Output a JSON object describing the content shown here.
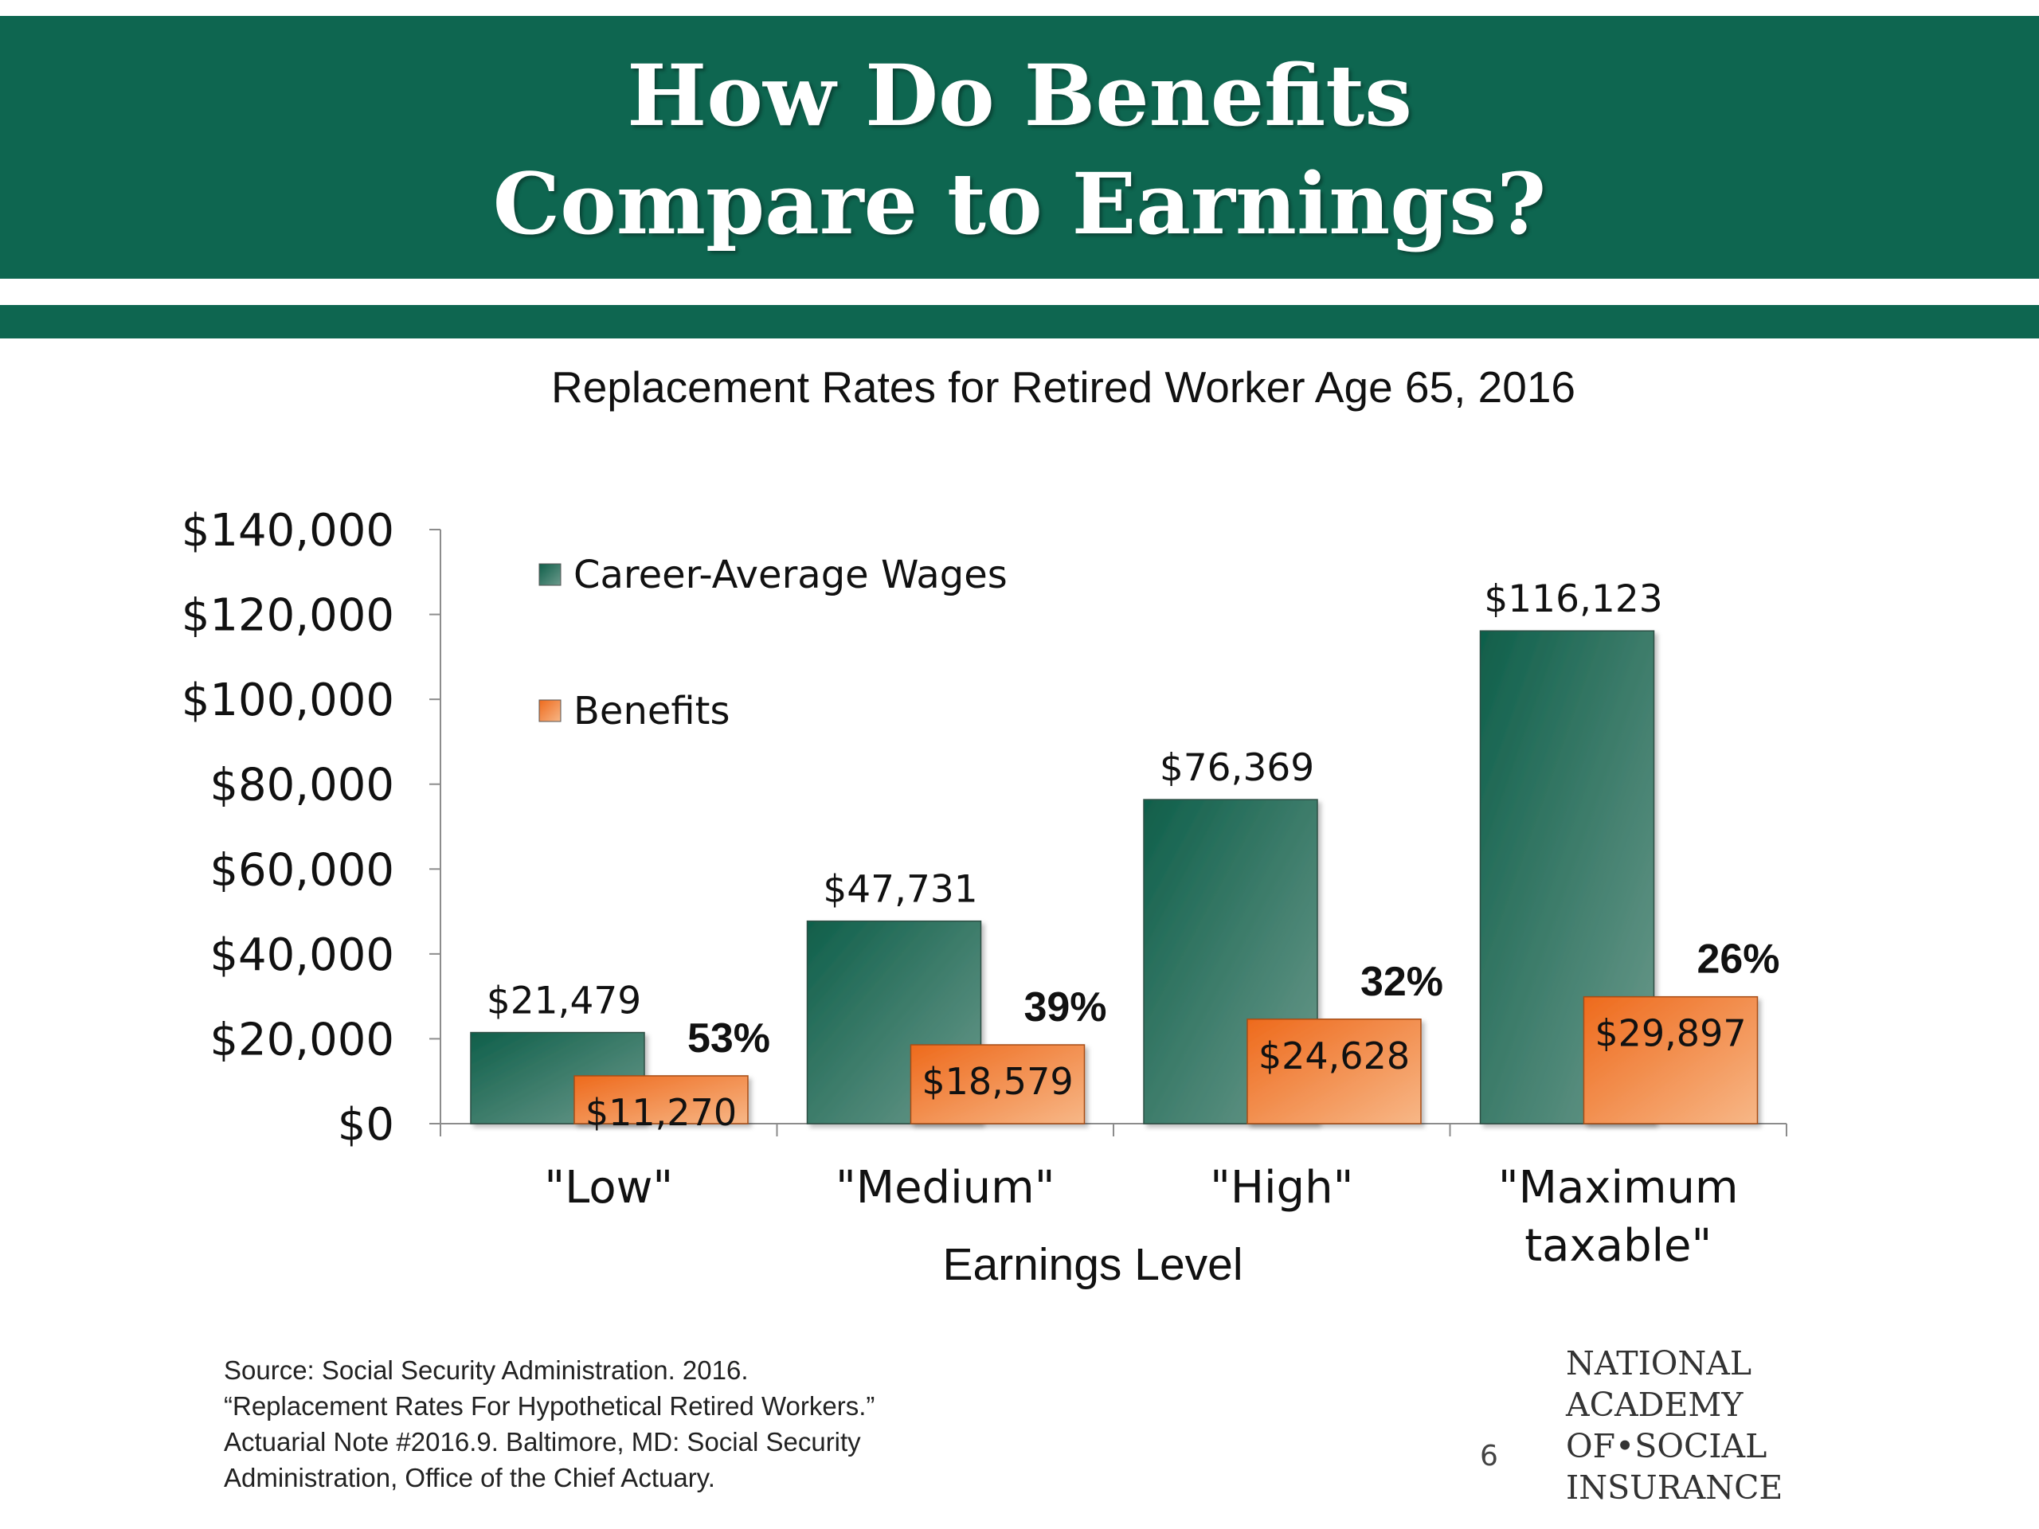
{
  "header": {
    "title_line1": "How Do Benefits",
    "title_line2": "Compare to Earnings?"
  },
  "chart_data": {
    "type": "bar",
    "title": "Replacement Rates for Retired Worker Age 65, 2016",
    "xlabel": "Earnings Level",
    "ylabel": "",
    "categories": [
      "\"Low\"",
      "\"Medium\"",
      "\"High\"",
      "\"Maximum taxable\""
    ],
    "category_lines": [
      [
        "\"Low\""
      ],
      [
        "\"Medium\""
      ],
      [
        "\"High\""
      ],
      [
        "\"Maximum",
        "taxable\""
      ]
    ],
    "series": [
      {
        "name": "Career-Average Wages",
        "values": [
          21479,
          47731,
          76369,
          116123
        ],
        "labels": [
          "$21,479",
          "$47,731",
          "$76,369",
          "$116,123"
        ],
        "color": "#1e6b55"
      },
      {
        "name": "Benefits",
        "values": [
          11270,
          18579,
          24628,
          29897
        ],
        "labels": [
          "$11,270",
          "$18,579",
          "$24,628",
          "$29,897"
        ],
        "color": "#f07a30"
      }
    ],
    "replacement_rates": [
      "53%",
      "39%",
      "32%",
      "26%"
    ],
    "ylim": [
      0,
      140000
    ],
    "yticks": [
      0,
      20000,
      40000,
      60000,
      80000,
      100000,
      120000,
      140000
    ],
    "ytick_labels": [
      "$0",
      "$20,000",
      "$40,000",
      "$60,000",
      "$80,000",
      "$100,000",
      "$120,000",
      "$140,000"
    ],
    "grid": false,
    "legend_position": "top-left"
  },
  "footer": {
    "source_lines": [
      "Source: Social Security Administration. 2016.",
      "“Replacement Rates For Hypothetical Retired Workers.”",
      "Actuarial Note #2016.9. Baltimore, MD: Social Security",
      "Administration, Office of the Chief Actuary."
    ],
    "page_number": "6",
    "logo_lines": [
      "NATIONAL",
      "ACADEMY",
      "OF•SOCIAL",
      "INSURANCE"
    ]
  }
}
